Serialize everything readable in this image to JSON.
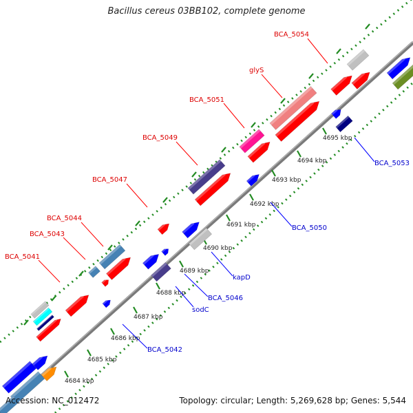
{
  "title": "Bacillus cereus 03BB102, complete genome",
  "footer": {
    "accession": "Accession: NC_012472",
    "summary": "Topology: circular; Length: 5,269,628 bp; Genes: 5,544"
  },
  "colors": {
    "red": "#ff0000",
    "blue": "#0000ff",
    "navy": "#000080",
    "slate": "#483d8b",
    "steelblue": "#4682b4",
    "gray": "#c0c0c0",
    "pink": "#ff1493",
    "salmon": "#f08080",
    "olive": "#6b8e23",
    "orange": "#ff8c00",
    "cyan": "#00ffff",
    "backbone": "#808080",
    "tick": "#228b22"
  },
  "map": {
    "ticks": [
      {
        "label": "4684 kbp"
      },
      {
        "label": "4685 kbp"
      },
      {
        "label": "4686 kbp"
      },
      {
        "label": "4687 kbp"
      },
      {
        "label": "4688 kbp"
      },
      {
        "label": "4689 kbp"
      },
      {
        "label": "4690 kbp"
      },
      {
        "label": "4691 kbp"
      },
      {
        "label": "4692 kbp"
      },
      {
        "label": "4693 kbp"
      },
      {
        "label": "4694 kbp"
      },
      {
        "label": "4695 kbp"
      }
    ],
    "labels_top": [
      {
        "text": "BCA_5041"
      },
      {
        "text": "BCA_5043"
      },
      {
        "text": "BCA_5044"
      },
      {
        "text": "BCA_5047"
      },
      {
        "text": "BCA_5049"
      },
      {
        "text": "BCA_5051"
      },
      {
        "text": "glyS"
      },
      {
        "text": "BCA_5054"
      }
    ],
    "labels_bottom": [
      {
        "text": "BCA_5042"
      },
      {
        "text": "sodC"
      },
      {
        "text": "BCA_5046"
      },
      {
        "text": "kapD"
      },
      {
        "text": "BCA_5050"
      },
      {
        "text": "BCA_5053"
      }
    ]
  }
}
